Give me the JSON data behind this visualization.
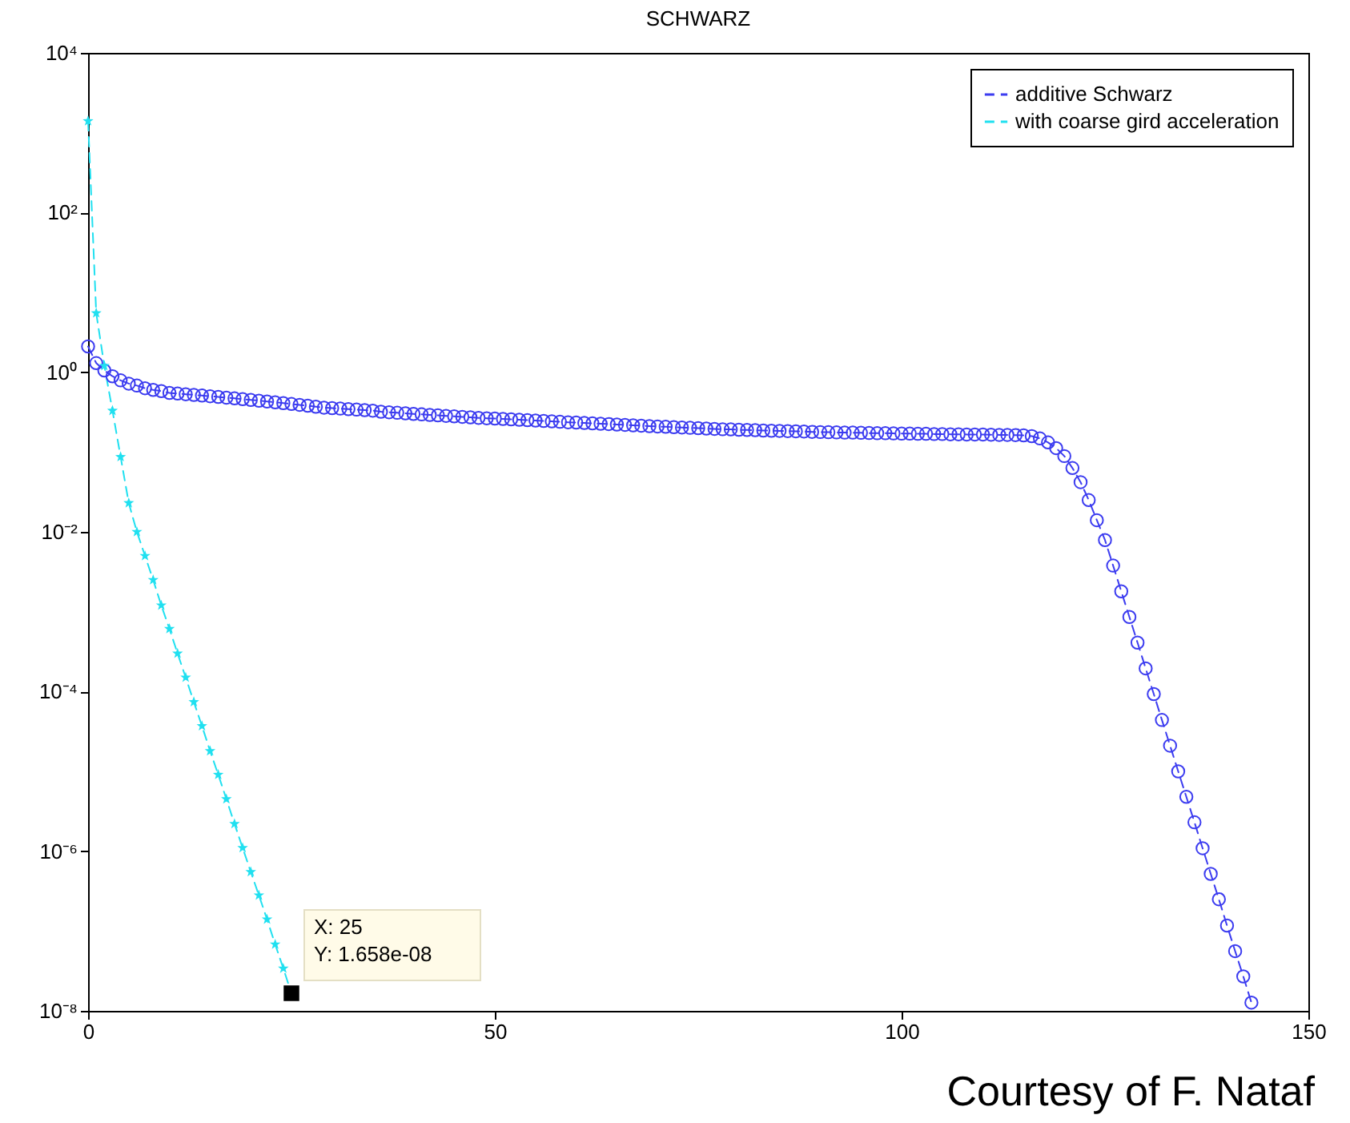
{
  "chart_data": {
    "type": "line",
    "title": "SCHWARZ",
    "log": "y",
    "legend": "top right",
    "xlim": [
      0,
      150
    ],
    "xticks": [
      0,
      50,
      100,
      150
    ],
    "ylim": [
      1e-08,
      10000
    ],
    "yticks": [
      {
        "value": 1e-08,
        "label": "10⁻⁸"
      },
      {
        "value": 1e-06,
        "label": "10⁻⁶"
      },
      {
        "value": 0.0001,
        "label": "10⁻⁴"
      },
      {
        "value": 0.01,
        "label": "10⁻²"
      },
      {
        "value": 1,
        "label": "10⁰"
      },
      {
        "value": 100,
        "label": "10²"
      },
      {
        "value": 10000,
        "label": "10⁴"
      }
    ],
    "series": [
      {
        "name": "additive Schwarz",
        "color": "#3c3cf0",
        "marker": "circle",
        "line_style": "dashed",
        "x": [
          0,
          1,
          2,
          3,
          4,
          5,
          6,
          7,
          8,
          9,
          10,
          11,
          12,
          13,
          14,
          15,
          16,
          17,
          18,
          19,
          20,
          21,
          22,
          23,
          24,
          25,
          26,
          27,
          28,
          29,
          30,
          31,
          32,
          33,
          34,
          35,
          36,
          37,
          38,
          39,
          40,
          41,
          42,
          43,
          44,
          45,
          46,
          47,
          48,
          49,
          50,
          51,
          52,
          53,
          54,
          55,
          56,
          57,
          58,
          59,
          60,
          61,
          62,
          63,
          64,
          65,
          66,
          67,
          68,
          69,
          70,
          71,
          72,
          73,
          74,
          75,
          76,
          77,
          78,
          79,
          80,
          81,
          82,
          83,
          84,
          85,
          86,
          87,
          88,
          89,
          90,
          91,
          92,
          93,
          94,
          95,
          96,
          97,
          98,
          99,
          100,
          101,
          102,
          103,
          104,
          105,
          106,
          107,
          108,
          109,
          110,
          111,
          112,
          113,
          114,
          115,
          116,
          117,
          118,
          119,
          120,
          121,
          122,
          123,
          124,
          125,
          126,
          127,
          128,
          129,
          130,
          131,
          132,
          133,
          134,
          135,
          136,
          137,
          138,
          139,
          140,
          141,
          142,
          143
        ],
        "values": [
          2.1,
          1.3,
          1.05,
          0.89,
          0.79,
          0.72,
          0.68,
          0.63,
          0.6,
          0.58,
          0.55,
          0.54,
          0.53,
          0.52,
          0.51,
          0.5,
          0.49,
          0.48,
          0.47,
          0.46,
          0.45,
          0.44,
          0.43,
          0.42,
          0.41,
          0.4,
          0.39,
          0.38,
          0.37,
          0.36,
          0.355,
          0.35,
          0.345,
          0.34,
          0.335,
          0.33,
          0.32,
          0.315,
          0.31,
          0.305,
          0.3,
          0.296,
          0.292,
          0.288,
          0.284,
          0.28,
          0.276,
          0.272,
          0.268,
          0.265,
          0.263,
          0.26,
          0.257,
          0.254,
          0.251,
          0.248,
          0.245,
          0.242,
          0.239,
          0.236,
          0.234,
          0.231,
          0.229,
          0.226,
          0.224,
          0.221,
          0.219,
          0.216,
          0.214,
          0.211,
          0.209,
          0.207,
          0.205,
          0.203,
          0.201,
          0.199,
          0.197,
          0.195,
          0.193,
          0.192,
          0.19,
          0.189,
          0.188,
          0.186,
          0.185,
          0.184,
          0.183,
          0.182,
          0.181,
          0.179,
          0.178,
          0.177,
          0.176,
          0.175,
          0.175,
          0.174,
          0.173,
          0.172,
          0.172,
          0.171,
          0.17,
          0.17,
          0.169,
          0.169,
          0.168,
          0.168,
          0.167,
          0.167,
          0.166,
          0.166,
          0.166,
          0.165,
          0.164,
          0.164,
          0.163,
          0.162,
          0.158,
          0.148,
          0.132,
          0.112,
          0.089,
          0.063,
          0.042,
          0.025,
          0.014,
          0.0079,
          0.00378,
          0.0018,
          0.00086,
          0.00041,
          0.000195,
          9.3e-05,
          4.4e-05,
          2.1e-05,
          1e-05,
          4.8e-06,
          2.3e-06,
          1.09e-06,
          5.2e-07,
          2.5e-07,
          1.17e-07,
          5.6e-08,
          2.7e-08,
          1.27e-08
        ]
      },
      {
        "name": "with coarse gird acceleration",
        "color": "#20e0f0",
        "marker": "star",
        "line_style": "dashed",
        "x": [
          0,
          1,
          2,
          3,
          4,
          5,
          6,
          7,
          8,
          9,
          10,
          11,
          12,
          13,
          14,
          15,
          16,
          17,
          18,
          19,
          20,
          21,
          22,
          23,
          24,
          25
        ],
        "values": [
          1400,
          5.5,
          1.2,
          0.33,
          0.087,
          0.023,
          0.01,
          0.005,
          0.0025,
          0.0012,
          0.00061,
          0.0003,
          0.00015,
          7.4e-05,
          3.7e-05,
          1.8e-05,
          9.1e-06,
          4.5e-06,
          2.2e-06,
          1.1e-06,
          5.5e-07,
          2.8e-07,
          1.4e-07,
          6.8e-08,
          3.4e-08,
          1.658e-08
        ]
      }
    ],
    "annotations": [
      {
        "text": "X: 25\nY: 1.658e-08",
        "x": 25,
        "y": 1.658e-08
      },
      "Courtesy of F. Nataf"
    ]
  }
}
